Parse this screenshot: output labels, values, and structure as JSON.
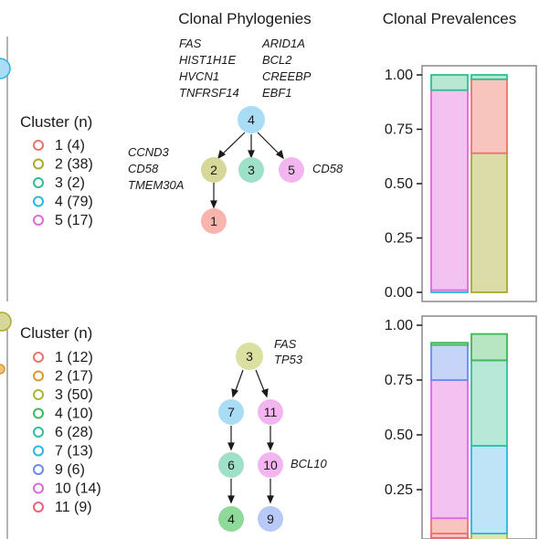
{
  "titles": {
    "phylogeny": "Clonal Phylogenies",
    "prevalence": "Clonal Prevalences"
  },
  "colors": {
    "c1": "#f8a9a0",
    "c2": "#d7d79a",
    "c3": "#9fe0c8",
    "c4": "#a9dcf5",
    "c5": "#f2b5ef",
    "c6": "#9fe0c8",
    "c7": "#a9dcf5",
    "c9": "#b9c9f5",
    "c10": "#f2b5ef",
    "c11": "#f8a9b0",
    "c4b": "#8fd99a",
    "c2b": "#f0c27a",
    "c3b": "#cdd98a"
  },
  "panels": [
    {
      "id": "top",
      "legend": {
        "title": "Cluster (n)",
        "items": [
          {
            "label": "1 (4)",
            "color": "#e8746b"
          },
          {
            "label": "2 (38)",
            "color": "#a8a830"
          },
          {
            "label": "3 (2)",
            "color": "#2fbf8f"
          },
          {
            "label": "4 (79)",
            "color": "#29b6e0"
          },
          {
            "label": "5 (17)",
            "color": "#e06ad8"
          }
        ]
      },
      "genes": {
        "root_left": [
          "FAS",
          "HIST1H1E",
          "HVCN1",
          "TNFRSF14"
        ],
        "root_right": [
          "ARID1A",
          "BCL2",
          "CREEBP",
          "EBF1"
        ],
        "node2": [
          "CCND3",
          "CD58",
          "TMEM30A"
        ],
        "node5": [
          "CD58"
        ]
      },
      "nodes": [
        {
          "id": "4",
          "label": "4",
          "fill": "#a9dcf5"
        },
        {
          "id": "2",
          "label": "2",
          "fill": "#d7d79a"
        },
        {
          "id": "3",
          "label": "3",
          "fill": "#9fe0c8"
        },
        {
          "id": "5",
          "label": "5",
          "fill": "#f2b5ef"
        },
        {
          "id": "1",
          "label": "1",
          "fill": "#f8b4ad"
        }
      ]
    },
    {
      "id": "bottom",
      "legend": {
        "title": "Cluster (n)",
        "items": [
          {
            "label": "1 (12)",
            "color": "#e8746b"
          },
          {
            "label": "2 (17)",
            "color": "#d99a2a"
          },
          {
            "label": "3 (50)",
            "color": "#a8b830"
          },
          {
            "label": "4 (10)",
            "color": "#3cb85a"
          },
          {
            "label": "6 (28)",
            "color": "#2fbf9f"
          },
          {
            "label": "7 (13)",
            "color": "#29b6e0"
          },
          {
            "label": "9 (6)",
            "color": "#6a8ae8"
          },
          {
            "label": "10 (14)",
            "color": "#d86ae0"
          },
          {
            "label": "11 (9)",
            "color": "#e8607a"
          }
        ]
      },
      "genes": {
        "node3": [
          "FAS",
          "TP53"
        ],
        "node10": [
          "BCL10"
        ]
      },
      "nodes": [
        {
          "id": "3",
          "label": "3",
          "fill": "#dbe0a0"
        },
        {
          "id": "7",
          "label": "7",
          "fill": "#a9dcf5"
        },
        {
          "id": "11",
          "label": "11",
          "fill": "#f2b5ef"
        },
        {
          "id": "6",
          "label": "6",
          "fill": "#9fe0c8"
        },
        {
          "id": "10",
          "label": "10",
          "fill": "#f2b5ef"
        },
        {
          "id": "4",
          "label": "4",
          "fill": "#8fd99a"
        },
        {
          "id": "9",
          "label": "9",
          "fill": "#b9c9f5"
        }
      ]
    }
  ],
  "chart_data": [
    {
      "type": "bar",
      "stacked": true,
      "title": "Clonal Prevalences",
      "yticks": [
        "0.00",
        "0.25",
        "0.50",
        "0.75",
        "1.00"
      ],
      "ylim": [
        0,
        1
      ],
      "columns": [
        {
          "segments": [
            {
              "cluster": "4",
              "value": 0.01,
              "fill": "#bfe4f7",
              "stroke": "#29b6e0"
            },
            {
              "cluster": "5",
              "value": 0.92,
              "fill": "#f3c2f0",
              "stroke": "#e06ad8"
            },
            {
              "cluster": "3",
              "value": 0.07,
              "fill": "#b8e8d4",
              "stroke": "#2fbf8f"
            }
          ]
        },
        {
          "segments": [
            {
              "cluster": "2",
              "value": 0.64,
              "fill": "#dcdca8",
              "stroke": "#a8a830"
            },
            {
              "cluster": "1",
              "value": 0.34,
              "fill": "#f8c4be",
              "stroke": "#e8746b"
            },
            {
              "cluster": "3",
              "value": 0.02,
              "fill": "#b8e8d4",
              "stroke": "#2fbf8f"
            }
          ]
        }
      ]
    },
    {
      "type": "bar",
      "stacked": true,
      "title": "",
      "yticks": [
        "0.25",
        "0.50",
        "0.75",
        "1.00"
      ],
      "ylim": [
        0,
        1
      ],
      "columns": [
        {
          "segments": [
            {
              "cluster": "2",
              "value": 0.03,
              "fill": "#f7d8a8",
              "stroke": "#d99a2a"
            },
            {
              "cluster": "11",
              "value": 0.02,
              "fill": "#f8c4cc",
              "stroke": "#e8607a"
            },
            {
              "cluster": "1",
              "value": 0.07,
              "fill": "#f8c4be",
              "stroke": "#e8746b"
            },
            {
              "cluster": "10",
              "value": 0.63,
              "fill": "#f3c2f0",
              "stroke": "#d86ae0"
            },
            {
              "cluster": "9",
              "value": 0.16,
              "fill": "#c6d4f7",
              "stroke": "#6a8ae8"
            },
            {
              "cluster": "4",
              "value": 0.01,
              "fill": "#b8e6c2",
              "stroke": "#3cb85a"
            }
          ]
        },
        {
          "segments": [
            {
              "cluster": "3",
              "value": 0.05,
              "fill": "#e2e4a8",
              "stroke": "#a8b830"
            },
            {
              "cluster": "7",
              "value": 0.4,
              "fill": "#bfe4f7",
              "stroke": "#29b6e0"
            },
            {
              "cluster": "6",
              "value": 0.39,
              "fill": "#b8e8d8",
              "stroke": "#2fbf9f"
            },
            {
              "cluster": "4",
              "value": 0.12,
              "fill": "#b8e6c2",
              "stroke": "#3cb85a"
            }
          ]
        }
      ]
    }
  ]
}
